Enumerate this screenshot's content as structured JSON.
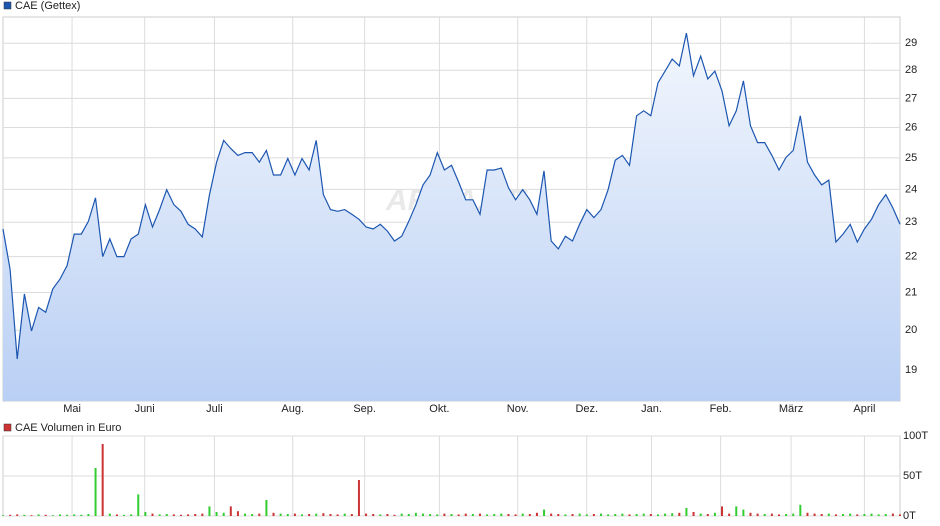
{
  "chart_data": [
    {
      "type": "line",
      "log": true,
      "grid": true,
      "watermark": "ARIVA.DE",
      "xlim": [
        0,
        126
      ],
      "ylim": [
        18.25,
        30.0
      ],
      "yticks": [
        19,
        20,
        21,
        22,
        23,
        24,
        25,
        26,
        27,
        28,
        29
      ],
      "xticks": [
        {
          "value": 9.7,
          "label": "Mai"
        },
        {
          "value": 19.9,
          "label": "Juni"
        },
        {
          "value": 29.7,
          "label": "Juli"
        },
        {
          "value": 40.7,
          "label": "Aug."
        },
        {
          "value": 50.8,
          "label": "Sep."
        },
        {
          "value": 61.3,
          "label": "Okt."
        },
        {
          "value": 72.3,
          "label": "Nov."
        },
        {
          "value": 82.0,
          "label": "Dez."
        },
        {
          "value": 91.1,
          "label": "Jan."
        },
        {
          "value": 100.8,
          "label": "Feb."
        },
        {
          "value": 110.7,
          "label": "März"
        },
        {
          "value": 121.0,
          "label": "April"
        }
      ],
      "series": [
        {
          "name": "CAE (Gettex)",
          "color": "#1c56b0",
          "values": [
            22.8,
            21.64,
            19.27,
            20.96,
            19.98,
            20.6,
            20.47,
            21.1,
            21.37,
            21.75,
            22.65,
            22.65,
            23.03,
            23.74,
            22.0,
            22.51,
            22.0,
            22.0,
            22.51,
            22.65,
            23.53,
            22.86,
            23.38,
            23.99,
            23.53,
            23.33,
            22.94,
            22.8,
            22.57,
            23.84,
            24.86,
            25.57,
            25.3,
            25.08,
            25.17,
            25.17,
            24.86,
            25.24,
            24.45,
            24.45,
            24.98,
            24.45,
            24.98,
            24.61,
            25.57,
            23.84,
            23.38,
            23.33,
            23.38,
            23.24,
            23.09,
            22.86,
            22.8,
            22.94,
            22.74,
            22.45,
            22.59,
            23.03,
            23.53,
            24.14,
            24.45,
            25.17,
            24.61,
            24.76,
            24.23,
            23.68,
            23.68,
            23.24,
            24.61,
            24.61,
            24.67,
            24.05,
            23.68,
            23.99,
            23.68,
            23.24,
            24.58,
            22.45,
            22.22,
            22.59,
            22.45,
            22.94,
            23.38,
            23.14,
            23.38,
            23.99,
            24.92,
            25.08,
            24.76,
            26.4,
            26.57,
            26.4,
            27.55,
            27.97,
            28.41,
            28.16,
            29.38,
            27.8,
            28.52,
            27.69,
            27.97,
            27.26,
            26.06,
            26.57,
            27.62,
            26.06,
            25.5,
            25.5,
            25.08,
            24.61,
            25.02,
            25.24,
            26.4,
            24.86,
            24.45,
            24.14,
            24.29,
            22.42,
            22.65,
            22.94,
            22.42,
            22.8,
            23.09,
            23.53,
            23.84,
            23.43,
            22.94
          ]
        }
      ]
    },
    {
      "type": "volume",
      "grid": true,
      "up_color": "#33cc33",
      "xlim": [
        0,
        126
      ],
      "ylim": [
        0,
        100000
      ],
      "yticks": [
        {
          "value": 0,
          "label": "0T"
        },
        {
          "value": 50000,
          "label": "50T"
        },
        {
          "value": 100000,
          "label": "100T"
        }
      ],
      "series": [
        {
          "name": "CAE Volumen in Euro",
          "color": "#cc3333",
          "values": [
            1000,
            1500,
            2000,
            1500,
            1000,
            2000,
            1500,
            1000,
            2000,
            1500,
            2000,
            1500,
            2500,
            60000,
            90000,
            3000,
            2000,
            1500,
            2000,
            27000,
            5000,
            3000,
            2000,
            2500,
            2000,
            1500,
            2000,
            2500,
            3000,
            12000,
            5000,
            4000,
            12000,
            6000,
            3000,
            2500,
            3000,
            20000,
            4000,
            3000,
            2500,
            3000,
            2000,
            2500,
            3000,
            3500,
            2500,
            2000,
            3000,
            2500,
            45000,
            3000,
            2500,
            2000,
            2500,
            1500,
            3000,
            2500,
            4000,
            3000,
            2500,
            2000,
            3000,
            2500,
            2000,
            3000,
            2500,
            3000,
            2000,
            2500,
            3000,
            2500,
            2000,
            3000,
            2500,
            4000,
            8000,
            3000,
            2500,
            2000,
            2500,
            3000,
            2000,
            2500,
            3000,
            2000,
            2500,
            3000,
            2000,
            2500,
            3000,
            2500,
            2000,
            3000,
            3500,
            4000,
            10000,
            5000,
            3000,
            2500,
            4000,
            12000,
            3000,
            12000,
            8000,
            4000,
            3000,
            2500,
            3000,
            2000,
            2500,
            3000,
            14000,
            4000,
            3000,
            2500,
            3000,
            2000,
            2500,
            3000,
            2000,
            2500,
            3000,
            2000,
            2500,
            3000,
            2000
          ]
        }
      ]
    }
  ]
}
